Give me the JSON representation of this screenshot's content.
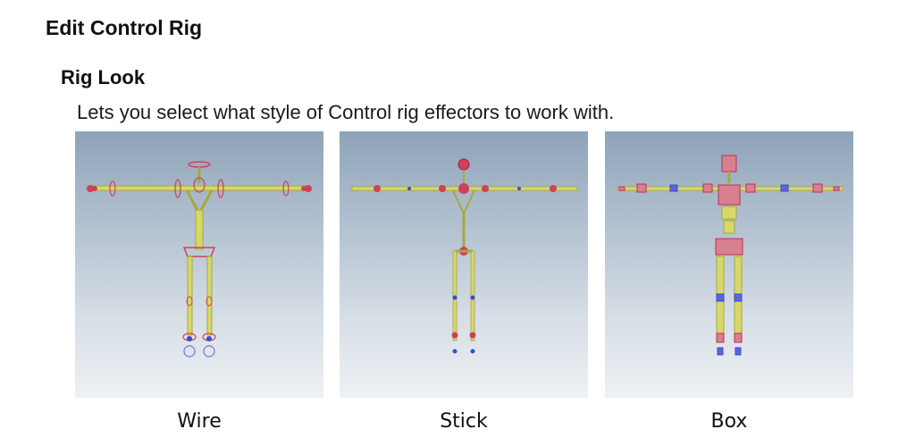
{
  "heading": "Edit Control Rig",
  "section": {
    "title": "Rig Look",
    "description": "Lets you select what style of Control rig effectors to work with."
  },
  "styles": [
    {
      "id": "wire",
      "label": "Wire"
    },
    {
      "id": "stick",
      "label": "Stick"
    },
    {
      "id": "box",
      "label": "Box"
    }
  ],
  "colors": {
    "bone": "#d8d86a",
    "bone_stroke": "#a8a83a",
    "effector_red": "#d0405a",
    "effector_blue": "#3a4ad0",
    "background_top": "#8ea3b9",
    "background_bottom": "#eef1f4"
  }
}
